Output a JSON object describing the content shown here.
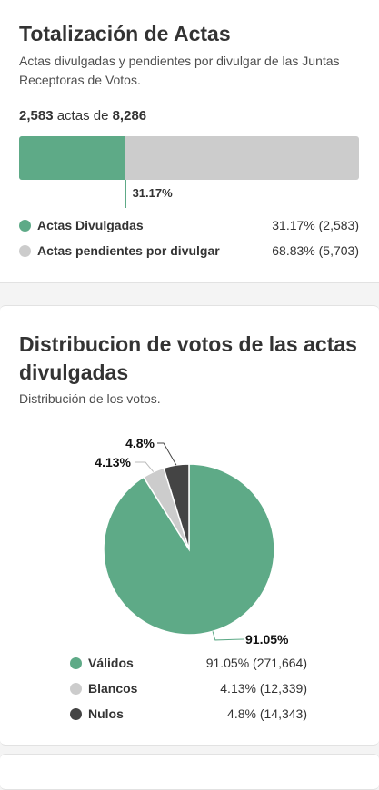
{
  "totalizacion": {
    "title": "Totalización de Actas",
    "subtitle": "Actas divulgadas y pendientes por divulgar de las Juntas Receptoras de Votos.",
    "count_divulgadas": "2,583",
    "count_middle": " actas de ",
    "count_total": "8,286",
    "progress_pct": 31.17,
    "progress_label": "31.17%",
    "legend": [
      {
        "label": "Actas Divulgadas",
        "value": "31.17% (2,583)",
        "color": "#5eaa87"
      },
      {
        "label": "Actas pendientes por divulgar",
        "value": "68.83% (5,703)",
        "color": "#cccccc"
      }
    ]
  },
  "distribucion": {
    "title": "Distribucion de votos de las actas divulgadas",
    "subtitle": "Distribución de los votos."
  },
  "chart_data": {
    "type": "pie",
    "title": "Distribucion de votos de las actas divulgadas",
    "categories": [
      "Válidos",
      "Blancos",
      "Nulos"
    ],
    "values": [
      91.05,
      4.13,
      4.8
    ],
    "counts": [
      "271,664",
      "12,339",
      "14,343"
    ],
    "slice_labels": [
      "91.05%",
      "4.13%",
      "4.8%"
    ],
    "colors": [
      "#5eaa87",
      "#cccccc",
      "#444444"
    ],
    "legend": [
      {
        "label": "Válidos",
        "value": "91.05% (271,664)"
      },
      {
        "label": "Blancos",
        "value": "4.13% (12,339)"
      },
      {
        "label": "Nulos",
        "value": "4.8% (14,343)"
      }
    ]
  }
}
